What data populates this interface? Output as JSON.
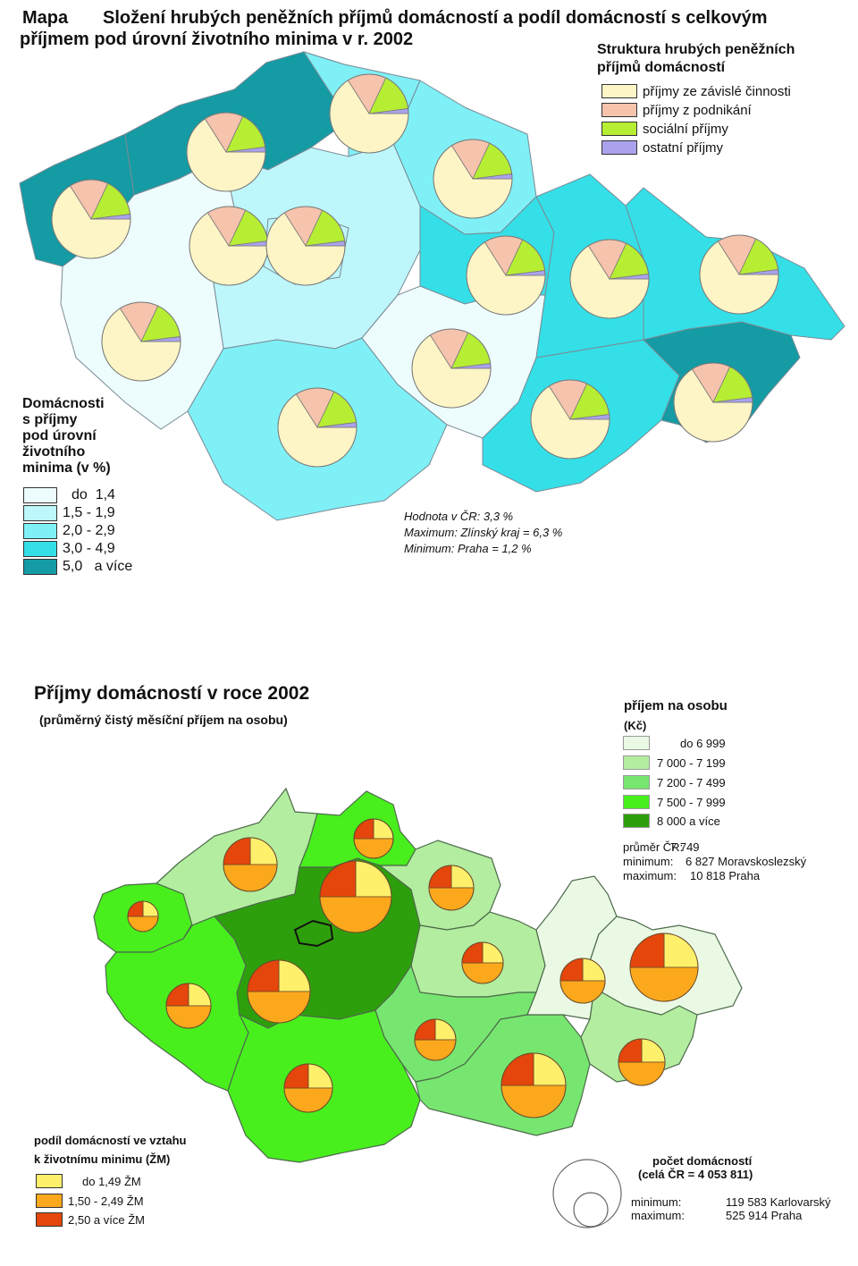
{
  "map1": {
    "label": "Mapa",
    "title_line1": "Složení hrubých peněžních příjmů domácností a podíl domácností s celkovým",
    "title_line2": "příjmem pod úrovní životního minima v r. 2002",
    "pie_legend": {
      "title_line1": "Struktura hrubých peněžních",
      "title_line2": "příjmů domácností",
      "items": [
        {
          "label": "příjmy ze závislé činnosti",
          "color": "#fdf5c6"
        },
        {
          "label": "příjmy z podnikání",
          "color": "#f6c3ad"
        },
        {
          "label": "sociální příjmy",
          "color": "#b6ee34"
        },
        {
          "label": "ostatní příjmy",
          "color": "#aaa2ec"
        }
      ]
    },
    "class_legend": {
      "title_lines": [
        "Domácnosti",
        "s příjmy",
        "pod úrovní",
        "životního",
        "minima (v %)"
      ],
      "items": [
        {
          "label": "do  1,4",
          "color": "#edfdfd"
        },
        {
          "label": "1,5 - 1,9",
          "color": "#bdf7fb"
        },
        {
          "label": "2,0 - 2,9",
          "color": "#7ff0f6"
        },
        {
          "label": "3,0 - 4,9",
          "color": "#35dfe7"
        },
        {
          "label": "5,0   a více",
          "color": "#149ba4"
        }
      ]
    },
    "stats": [
      "Hodnota v ČR: 3,3 %",
      "Maximum: Zlínský kraj = 6,3 %",
      "Minimum: Praha = 1,2 %"
    ],
    "pie_shares": [
      0.66,
      0.16,
      0.16,
      0.02
    ]
  },
  "map2": {
    "title": "Příjmy domácností v roce 2002",
    "subtitle": "(průměrný čistý měsíční příjem na osobu)",
    "income_legend": {
      "title_line1": "příjem na osobu",
      "title_line2": "(Kč)",
      "items": [
        {
          "label": "do 6 999",
          "color": "#eaf9e4"
        },
        {
          "label": "7 000 - 7 199",
          "color": "#b3eda0"
        },
        {
          "label": "7 200 - 7 499",
          "color": "#77e670"
        },
        {
          "label": "7 500 - 7 999",
          "color": "#48ef1d"
        },
        {
          "label": "8 000 a více",
          "color": "#2e9f0c"
        }
      ]
    },
    "stats": [
      {
        "label": "průměr ČR:",
        "value": "7 749"
      },
      {
        "label": "minimum:",
        "value": "6 827 Moravskoslezský"
      },
      {
        "label": "maximum:",
        "value": "10 818 Praha"
      }
    ],
    "share_legend": {
      "title_line1": "podíl domácností ve vztahu",
      "title_line2": "k životnímu minimu (ŽM)",
      "items": [
        {
          "label": "do 1,49 ŽM",
          "color": "#fff06c"
        },
        {
          "label": "1,50 - 2,49 ŽM",
          "color": "#fba81c"
        },
        {
          "label": "2,50 a více ŽM",
          "color": "#e4460c"
        }
      ]
    },
    "count_legend": {
      "title_line1": "počet domácností",
      "title_line2": "(celá ČR = 4 053 811)",
      "items": [
        {
          "label": "minimum:",
          "value": "119 583 Karlovarský"
        },
        {
          "label": "maximum:",
          "value": "525 914 Praha"
        }
      ]
    },
    "pie_shares": [
      0.25,
      0.5,
      0.25
    ]
  }
}
